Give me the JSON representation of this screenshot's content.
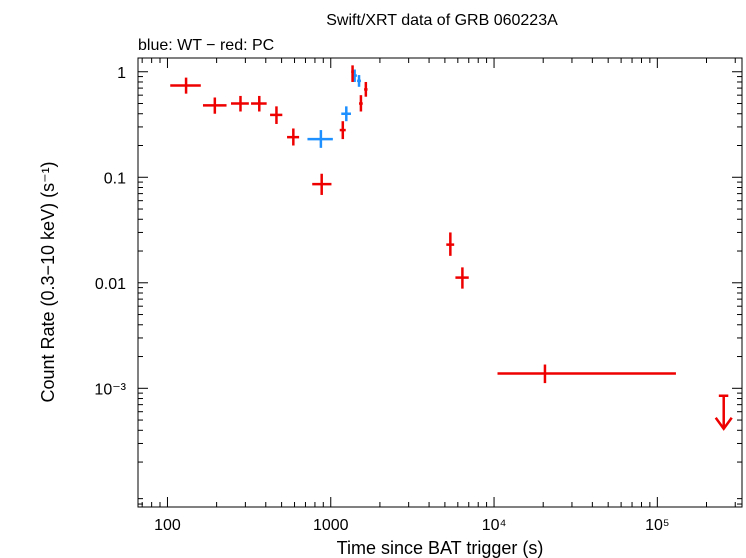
{
  "chart_data": {
    "type": "scatter",
    "title": "Swift/XRT data of GRB 060223A",
    "subtitle": "blue: WT − red: PC",
    "xlabel": "Time since BAT trigger (s)",
    "ylabel": "Count Rate (0.3−10 keV) (s⁻¹)",
    "x_scale": "log",
    "y_scale": "log",
    "xlim": [
      66,
      330000
    ],
    "ylim": [
      7.5e-05,
      1.35
    ],
    "grid": false,
    "x_ticks": [
      {
        "value": 100,
        "label": "100"
      },
      {
        "value": 1000,
        "label": "1000"
      },
      {
        "value": 10000,
        "label": "10⁴"
      },
      {
        "value": 100000,
        "label": "10⁵"
      }
    ],
    "y_ticks": [
      {
        "value": 1,
        "label": "1"
      },
      {
        "value": 0.1,
        "label": "0.1"
      },
      {
        "value": 0.01,
        "label": "0.01"
      },
      {
        "value": 0.001,
        "label": "10⁻³"
      }
    ],
    "colors": {
      "WT": "#1e90ff",
      "PC": "#ee0000"
    },
    "series": [
      {
        "name": "WT",
        "color": "#1e90ff",
        "points": [
          {
            "x": 870,
            "xlo": 720,
            "xhi": 1030,
            "y": 0.23,
            "ylo": 0.19,
            "yhi": 0.28
          },
          {
            "x": 1245,
            "xlo": 1160,
            "xhi": 1330,
            "y": 0.4,
            "ylo": 0.34,
            "yhi": 0.47
          },
          {
            "x": 1400,
            "xlo": 1355,
            "xhi": 1445,
            "y": 0.92,
            "ylo": 0.8,
            "yhi": 1.05
          },
          {
            "x": 1490,
            "xlo": 1450,
            "xhi": 1530,
            "y": 0.82,
            "ylo": 0.72,
            "yhi": 0.93
          }
        ]
      },
      {
        "name": "PC",
        "color": "#ee0000",
        "points": [
          {
            "x": 130,
            "xlo": 104,
            "xhi": 160,
            "y": 0.74,
            "ylo": 0.62,
            "yhi": 0.88
          },
          {
            "x": 195,
            "xlo": 165,
            "xhi": 230,
            "y": 0.48,
            "ylo": 0.4,
            "yhi": 0.57
          },
          {
            "x": 280,
            "xlo": 245,
            "xhi": 315,
            "y": 0.5,
            "ylo": 0.42,
            "yhi": 0.59
          },
          {
            "x": 365,
            "xlo": 325,
            "xhi": 405,
            "y": 0.5,
            "ylo": 0.42,
            "yhi": 0.59
          },
          {
            "x": 465,
            "xlo": 425,
            "xhi": 505,
            "y": 0.39,
            "ylo": 0.32,
            "yhi": 0.47
          },
          {
            "x": 590,
            "xlo": 540,
            "xhi": 640,
            "y": 0.24,
            "ylo": 0.2,
            "yhi": 0.29
          },
          {
            "x": 880,
            "xlo": 770,
            "xhi": 1010,
            "y": 0.086,
            "ylo": 0.068,
            "yhi": 0.108
          },
          {
            "x": 1185,
            "xlo": 1135,
            "xhi": 1235,
            "y": 0.28,
            "ylo": 0.23,
            "yhi": 0.34
          },
          {
            "x": 1360,
            "xlo": 1335,
            "xhi": 1385,
            "y": 1.0,
            "ylo": 0.8,
            "yhi": 1.15
          },
          {
            "x": 1530,
            "xlo": 1490,
            "xhi": 1570,
            "y": 0.5,
            "ylo": 0.42,
            "yhi": 0.6
          },
          {
            "x": 1640,
            "xlo": 1600,
            "xhi": 1680,
            "y": 0.68,
            "ylo": 0.58,
            "yhi": 0.8
          },
          {
            "x": 5400,
            "xlo": 5100,
            "xhi": 5700,
            "y": 0.023,
            "ylo": 0.018,
            "yhi": 0.03
          },
          {
            "x": 6400,
            "xlo": 5800,
            "xhi": 7000,
            "y": 0.0112,
            "ylo": 0.0088,
            "yhi": 0.014
          },
          {
            "x": 20500,
            "xlo": 10500,
            "xhi": 130000,
            "y": 0.00138,
            "ylo": 0.00112,
            "yhi": 0.00168
          }
        ]
      }
    ],
    "upper_limits": [
      {
        "series": "PC",
        "x": 255000,
        "xlo": 238000,
        "xhi": 272000,
        "y": 0.00085,
        "color": "#ee0000"
      }
    ]
  }
}
